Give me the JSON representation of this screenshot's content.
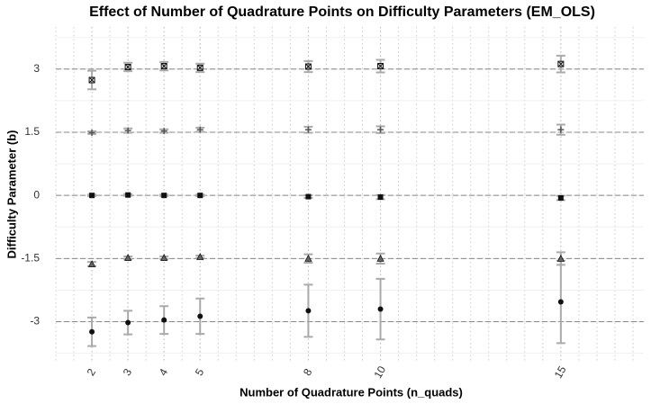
{
  "chart_data": {
    "type": "errorbar",
    "title": "Effect of Number of Quadrature Points on Difficulty Parameters (EM_OLS)",
    "x_label": "Number of Quadrature Points (n_quads)",
    "y_label": "Difficulty Parameter (b)",
    "x": [
      2,
      3,
      4,
      5,
      8,
      10,
      15
    ],
    "xlim": [
      1,
      17.3
    ],
    "xticks": [
      2,
      3,
      4,
      5,
      8,
      10,
      15
    ],
    "ylim": [
      -3.95,
      4
    ],
    "yticks": [
      -3,
      -1.5,
      0,
      1.5,
      3
    ],
    "reference_lines": [
      -3,
      -1.5,
      0,
      1.5,
      3
    ],
    "grid": true,
    "point_color": "#111111",
    "error_color": "#aaaaaa",
    "series": [
      {
        "marker": "circle",
        "values": [
          -3.24,
          -3.02,
          -2.96,
          -2.87,
          -2.74,
          -2.7,
          -2.53
        ],
        "errors": [
          0.34,
          0.28,
          0.33,
          0.42,
          0.62,
          0.72,
          0.98
        ]
      },
      {
        "marker": "triangle",
        "values": [
          -1.63,
          -1.48,
          -1.48,
          -1.46,
          -1.5,
          -1.5,
          -1.5
        ],
        "errors": [
          0.05,
          0.03,
          0.03,
          0.03,
          0.1,
          0.12,
          0.15
        ]
      },
      {
        "marker": "square",
        "values": [
          0,
          0.01,
          0,
          0,
          -0.03,
          -0.04,
          -0.06
        ],
        "errors": [
          0.02,
          0.02,
          0.02,
          0.02,
          0.03,
          0.05,
          0.05
        ]
      },
      {
        "marker": "plus",
        "values": [
          1.49,
          1.54,
          1.53,
          1.56,
          1.56,
          1.56,
          1.56
        ],
        "errors": [
          0.03,
          0.05,
          0.04,
          0.05,
          0.07,
          0.08,
          0.12
        ]
      },
      {
        "marker": "square-x",
        "values": [
          2.74,
          3.05,
          3.07,
          3.03,
          3.06,
          3.07,
          3.12
        ],
        "errors": [
          0.22,
          0.1,
          0.1,
          0.1,
          0.13,
          0.15,
          0.2
        ]
      }
    ]
  }
}
